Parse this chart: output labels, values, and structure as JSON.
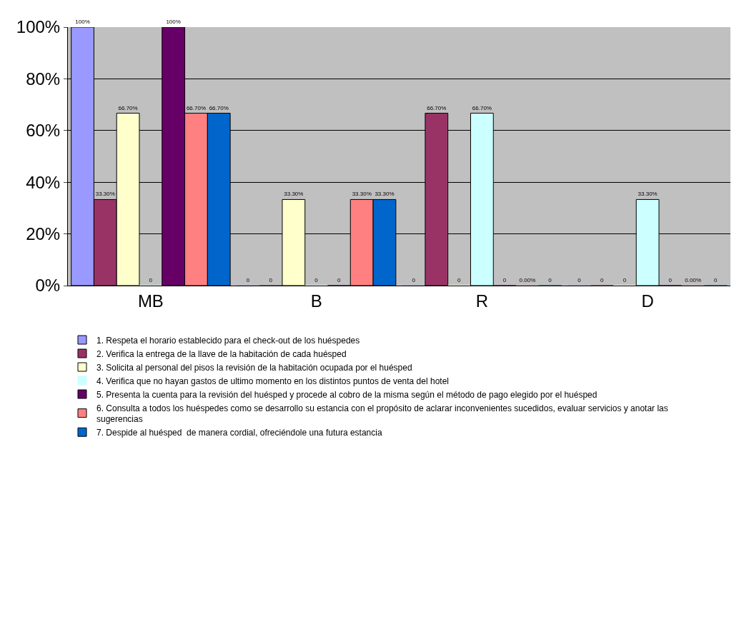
{
  "chart_data": {
    "type": "bar",
    "categories": [
      "MB",
      "B",
      "R",
      "D"
    ],
    "ylim": [
      0,
      100
    ],
    "yticks": [
      {
        "value": 0,
        "label": "0%"
      },
      {
        "value": 20,
        "label": "20%"
      },
      {
        "value": 40,
        "label": "40%"
      },
      {
        "value": 60,
        "label": "60%"
      },
      {
        "value": 80,
        "label": "80%"
      },
      {
        "value": 100,
        "label": "100%"
      }
    ],
    "grid": "y",
    "legend": "bottom",
    "series": [
      {
        "name": "1. Respeta el horario establecido para el check-out de los huéspedes",
        "color": "#9999ff",
        "values": [
          100,
          0,
          0,
          0
        ],
        "value_labels": [
          "100%",
          "0",
          "0",
          "0"
        ]
      },
      {
        "name": "2. Verifica la entrega de la llave de la habitación de cada huésped",
        "color": "#993366",
        "values": [
          33.3,
          0,
          66.7,
          0
        ],
        "value_labels": [
          "33.30%",
          "0",
          "66.70%",
          "0"
        ]
      },
      {
        "name": "3. Solicita al personal del pisos la revisión de la habitación ocupada por el huésped",
        "color": "#ffffcc",
        "values": [
          66.7,
          33.3,
          0,
          0
        ],
        "value_labels": [
          "66.70%",
          "33.30%",
          "0",
          "0"
        ]
      },
      {
        "name": "4. Verifica que no hayan gastos de ultimo momento en los distintos puntos de venta del hotel",
        "color": "#ccffff",
        "values": [
          0,
          0,
          66.7,
          33.3
        ],
        "value_labels": [
          "0",
          "0",
          "66.70%",
          "33.30%"
        ]
      },
      {
        "name": "5. Presenta la cuenta para la revisión del huésped y procede al cobro de la misma según el método de pago elegido por el huésped",
        "color": "#660066",
        "values": [
          100,
          0,
          0,
          0
        ],
        "value_labels": [
          "100%",
          "0",
          "0",
          "0"
        ]
      },
      {
        "name": "6. Consulta a todos los huéspedes como se desarrollo su estancia con el propósito de aclarar inconvenientes sucedidos, evaluar servicios y anotar las sugerencias",
        "color": "#ff8080",
        "values": [
          66.7,
          33.3,
          0,
          0
        ],
        "value_labels": [
          "66.70%",
          "33.30%",
          "0.00%",
          "0.00%"
        ]
      },
      {
        "name": "7. Despide al huésped  de manera cordial, ofreciéndole una futura estancia",
        "color": "#0066cc",
        "values": [
          66.7,
          33.3,
          0,
          0
        ],
        "value_labels": [
          "66.70%",
          "33.30%",
          "0",
          "0"
        ]
      }
    ]
  }
}
